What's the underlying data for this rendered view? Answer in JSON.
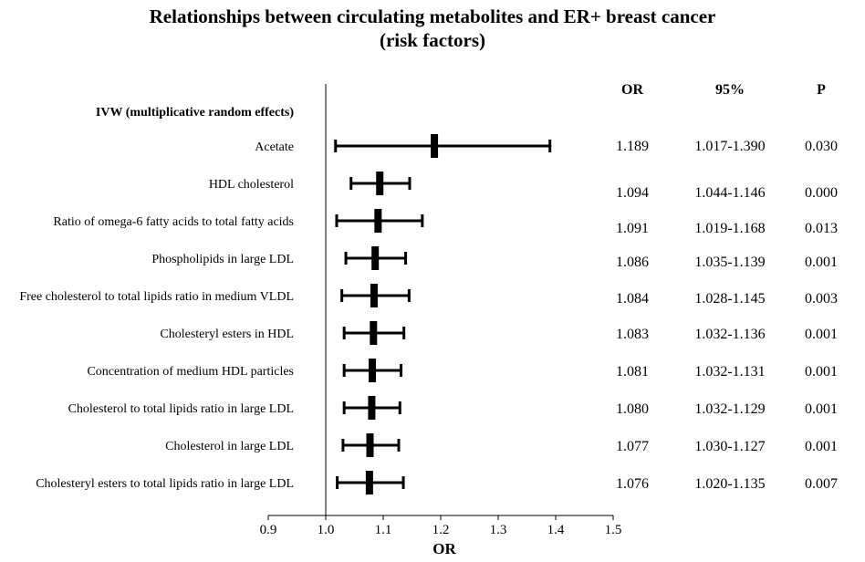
{
  "chart_data": {
    "type": "forest",
    "title_lines": [
      "Relationships between circulating metabolites and ER+ breast cancer",
      "(risk factors)"
    ],
    "method_label": "IVW (multiplicative random effects)",
    "column_headers": {
      "or": "OR",
      "ci": "95%",
      "p": "P"
    },
    "xlabel": "OR",
    "xlim": [
      0.9,
      1.5
    ],
    "xticks": [
      0.9,
      1.0,
      1.1,
      1.2,
      1.3,
      1.4,
      1.5
    ],
    "xtick_labels": [
      "0.9",
      "1.0",
      "1.1",
      "1.2",
      "1.3",
      "1.4",
      "1.5"
    ],
    "reference_line": 1.0,
    "rows": [
      {
        "label": "Acetate",
        "or": 1.189,
        "lower": 1.017,
        "upper": 1.39,
        "or_text": "1.189",
        "ci_text": "1.017-1.390",
        "p_text": "0.030"
      },
      {
        "label": "HDL cholesterol",
        "or": 1.094,
        "lower": 1.044,
        "upper": 1.146,
        "or_text": "1.094",
        "ci_text": "1.044-1.146",
        "p_text": "0.000"
      },
      {
        "label": "Ratio of omega-6 fatty acids to total fatty acids",
        "or": 1.091,
        "lower": 1.019,
        "upper": 1.168,
        "or_text": "1.091",
        "ci_text": "1.019-1.168",
        "p_text": "0.013"
      },
      {
        "label": "Phospholipids in large LDL",
        "or": 1.086,
        "lower": 1.035,
        "upper": 1.139,
        "or_text": "1.086",
        "ci_text": "1.035-1.139",
        "p_text": "0.001"
      },
      {
        "label": "Free cholesterol to total lipids ratio in medium VLDL",
        "or": 1.084,
        "lower": 1.028,
        "upper": 1.145,
        "or_text": "1.084",
        "ci_text": "1.028-1.145",
        "p_text": "0.003"
      },
      {
        "label": "Cholesteryl esters in HDL",
        "or": 1.083,
        "lower": 1.032,
        "upper": 1.136,
        "or_text": "1.083",
        "ci_text": "1.032-1.136",
        "p_text": "0.001"
      },
      {
        "label": "Concentration of medium HDL particles",
        "or": 1.081,
        "lower": 1.032,
        "upper": 1.131,
        "or_text": "1.081",
        "ci_text": "1.032-1.131",
        "p_text": "0.001"
      },
      {
        "label": "Cholesterol to total lipids ratio in large LDL",
        "or": 1.08,
        "lower": 1.032,
        "upper": 1.129,
        "or_text": "1.080",
        "ci_text": "1.032-1.129",
        "p_text": "0.001"
      },
      {
        "label": "Cholesterol in large LDL",
        "or": 1.077,
        "lower": 1.03,
        "upper": 1.127,
        "or_text": "1.077",
        "ci_text": "1.030-1.127",
        "p_text": "0.001"
      },
      {
        "label": "Cholesteryl esters to total lipids ratio in large LDL",
        "or": 1.076,
        "lower": 1.02,
        "upper": 1.135,
        "or_text": "1.076",
        "ci_text": "1.020-1.135",
        "p_text": "0.007"
      }
    ]
  }
}
